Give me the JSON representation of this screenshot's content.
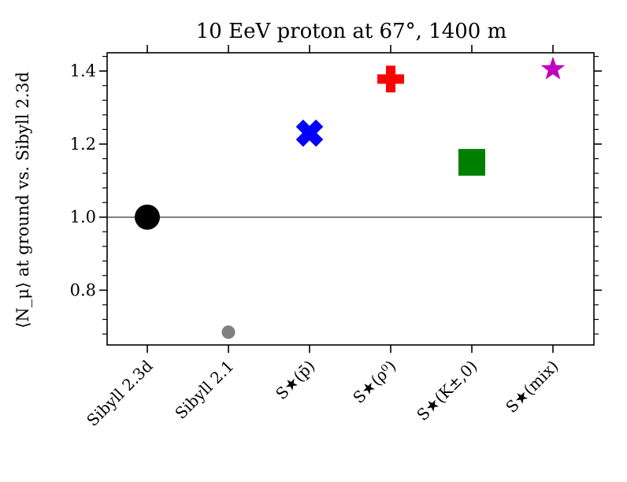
{
  "chart_data": {
    "type": "scatter",
    "title": "10 EeV proton at 67°, 1400 m",
    "xlabel": "",
    "ylabel": "⟨N_μ⟩ at ground vs. Sibyll 2.3d",
    "ylim": [
      0.65,
      1.45
    ],
    "yticks": [
      0.8,
      1.0,
      1.2,
      1.4
    ],
    "ytick_labels": [
      "0.8",
      "1.0",
      "1.2",
      "1.4"
    ],
    "reference_line": 1.0,
    "categories": [
      "Sibyll 2.3d",
      "Sibyll 2.1",
      "S★(p̄)",
      "S★(ρ⁰)",
      "S★(K±,0)",
      "S★(mix)"
    ],
    "points": [
      {
        "label": "Sibyll 2.3d",
        "value": 1.0,
        "marker": "circle",
        "color": "#000000"
      },
      {
        "label": "Sibyll 2.1",
        "value": 0.685,
        "marker": "small-circle",
        "color": "#808080"
      },
      {
        "label": "S★(p̄)",
        "value": 1.23,
        "marker": "x-filled",
        "color": "#0000ff"
      },
      {
        "label": "S★(ρ⁰)",
        "value": 1.378,
        "marker": "plus-filled",
        "color": "#ff0000"
      },
      {
        "label": "S★(K±,0)",
        "value": 1.15,
        "marker": "square",
        "color": "#008000"
      },
      {
        "label": "S★(mix)",
        "value": 1.405,
        "marker": "star",
        "color": "#bf00bf"
      }
    ]
  }
}
